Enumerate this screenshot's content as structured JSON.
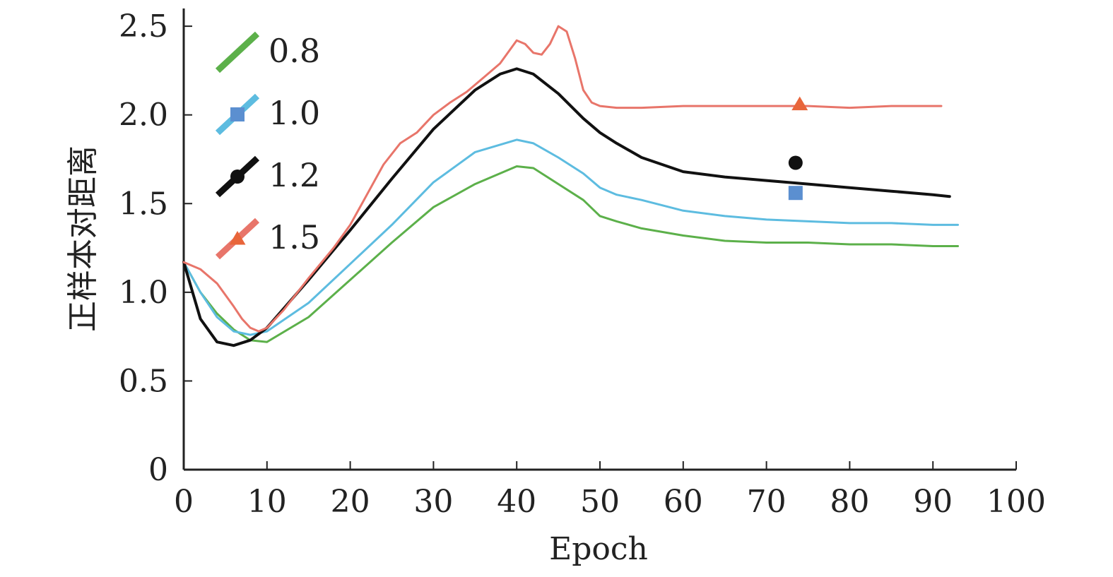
{
  "chart_data": {
    "type": "line",
    "xlabel": "Epoch",
    "ylabel": "正样本对距离",
    "xlim": [
      0,
      100
    ],
    "ylim": [
      0,
      2.6
    ],
    "xticks": [
      0,
      10,
      20,
      30,
      40,
      50,
      60,
      70,
      80,
      90,
      100
    ],
    "yticks": [
      0,
      0.5,
      1.0,
      1.5,
      2.0,
      2.5
    ],
    "xtick_labels": [
      "0",
      "10",
      "20",
      "30",
      "40",
      "50",
      "60",
      "70",
      "80",
      "90",
      "100"
    ],
    "ytick_labels": [
      "0",
      "0.5",
      "1.0",
      "1.5",
      "2.0",
      "2.5"
    ],
    "grid": false,
    "legend_position": "top-left",
    "series": [
      {
        "name": "0.8",
        "color": "#5cb04a",
        "marker": "none",
        "x": [
          0,
          2,
          4,
          6,
          8,
          10,
          15,
          20,
          25,
          30,
          35,
          40,
          42,
          45,
          48,
          50,
          52,
          55,
          60,
          65,
          70,
          75,
          80,
          85,
          90,
          93
        ],
        "y": [
          1.17,
          1.0,
          0.88,
          0.79,
          0.73,
          0.72,
          0.86,
          1.07,
          1.28,
          1.48,
          1.61,
          1.71,
          1.7,
          1.61,
          1.52,
          1.43,
          1.4,
          1.36,
          1.32,
          1.29,
          1.28,
          1.28,
          1.27,
          1.27,
          1.26,
          1.26
        ]
      },
      {
        "name": "1.0",
        "color": "#5dbce0",
        "marker": "square",
        "marker_color": "#5b8fd0",
        "marker_x": 73.5,
        "marker_y": 1.56,
        "x": [
          0,
          2,
          4,
          6,
          8,
          10,
          15,
          20,
          25,
          30,
          35,
          40,
          42,
          45,
          48,
          50,
          52,
          55,
          60,
          65,
          70,
          75,
          80,
          85,
          90,
          93
        ],
        "y": [
          1.17,
          1.0,
          0.86,
          0.78,
          0.76,
          0.78,
          0.94,
          1.16,
          1.38,
          1.62,
          1.79,
          1.86,
          1.84,
          1.76,
          1.67,
          1.59,
          1.55,
          1.52,
          1.46,
          1.43,
          1.41,
          1.4,
          1.39,
          1.39,
          1.38,
          1.38
        ]
      },
      {
        "name": "1.2",
        "color": "#111111",
        "marker": "circle",
        "marker_color": "#111111",
        "marker_x": 73.5,
        "marker_y": 1.73,
        "x": [
          0,
          2,
          4,
          6,
          8,
          10,
          15,
          20,
          25,
          30,
          35,
          38,
          40,
          42,
          45,
          48,
          50,
          52,
          55,
          60,
          65,
          70,
          75,
          80,
          85,
          90,
          92
        ],
        "y": [
          1.17,
          0.85,
          0.72,
          0.7,
          0.73,
          0.8,
          1.07,
          1.35,
          1.64,
          1.92,
          2.14,
          2.23,
          2.26,
          2.23,
          2.12,
          1.98,
          1.9,
          1.84,
          1.76,
          1.68,
          1.65,
          1.63,
          1.61,
          1.59,
          1.57,
          1.55,
          1.54
        ]
      },
      {
        "name": "1.5",
        "color": "#e8756a",
        "marker": "triangle",
        "marker_color": "#e8653a",
        "marker_x": 74,
        "marker_y": 2.06,
        "x": [
          0,
          2,
          4,
          6,
          7,
          8,
          9,
          10,
          12,
          15,
          18,
          20,
          22,
          24,
          26,
          28,
          30,
          32,
          34,
          36,
          38,
          40,
          41,
          42,
          43,
          44,
          45,
          46,
          47,
          48,
          49,
          50,
          52,
          55,
          60,
          65,
          70,
          75,
          80,
          85,
          90,
          91
        ],
        "y": [
          1.17,
          1.13,
          1.05,
          0.92,
          0.85,
          0.8,
          0.78,
          0.8,
          0.9,
          1.08,
          1.25,
          1.38,
          1.55,
          1.72,
          1.84,
          1.9,
          2.0,
          2.07,
          2.13,
          2.21,
          2.29,
          2.42,
          2.4,
          2.35,
          2.34,
          2.4,
          2.5,
          2.47,
          2.32,
          2.14,
          2.07,
          2.05,
          2.04,
          2.04,
          2.05,
          2.05,
          2.05,
          2.05,
          2.04,
          2.05,
          2.05,
          2.05
        ]
      }
    ]
  }
}
